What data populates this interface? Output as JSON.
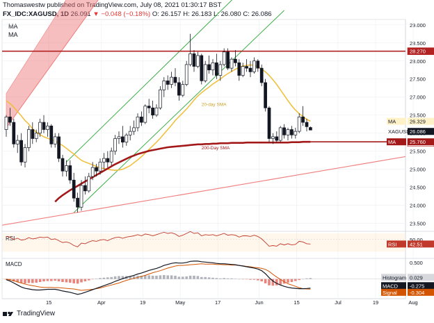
{
  "header": {
    "line1": "Thomaswestw published on TradingView.com, July 08, 2021 01:30:17 BST",
    "symbol": "FX_IDC:XAGUSD, 1D",
    "last": "26.091",
    "change": "▼ −0.048 (−0.18%)",
    "open": "O: 26.157",
    "high": "H: 26.183",
    "low": "L: 26.080",
    "close": "C: 26.086"
  },
  "indicators": [
    "MA",
    "MA"
  ],
  "footer": {
    "brand": "TradingView"
  },
  "colors": {
    "up": "#ffffff",
    "down": "#131722",
    "ma20": "#f0c040",
    "ma200": "#a31919",
    "channel": "#3fae49",
    "resistance": "#b22222",
    "support": "#f08080",
    "rsi": "#c0392b",
    "macd": "#131722",
    "signal": "#d35400"
  },
  "chart_data": [
    {
      "type": "candlestick",
      "title": "",
      "symbol": "FX_IDC:XAGUSD",
      "timeframe": "1D",
      "ylim": [
        23.3,
        29.15
      ],
      "y_ticks": [
        "29.000",
        "28.500",
        "28.000",
        "27.500",
        "27.000",
        "26.500",
        "26.000",
        "25.500",
        "25.000",
        "24.500",
        "24.000",
        "23.500"
      ],
      "x_ticks": [
        "15",
        "Apr",
        "19",
        "May",
        "17",
        "Jun",
        "15",
        "Jul",
        "19",
        "Aug"
      ],
      "candles": [
        {
          "o": 26.1,
          "h": 26.5,
          "l": 25.9,
          "c": 26.45
        },
        {
          "o": 26.45,
          "h": 26.7,
          "l": 26.2,
          "c": 26.3
        },
        {
          "o": 26.3,
          "h": 26.4,
          "l": 25.6,
          "c": 25.7
        },
        {
          "o": 25.7,
          "h": 25.95,
          "l": 25.45,
          "c": 25.8
        },
        {
          "o": 25.8,
          "h": 26.0,
          "l": 25.1,
          "c": 25.2
        },
        {
          "o": 25.2,
          "h": 25.7,
          "l": 25.05,
          "c": 25.6
        },
        {
          "o": 25.6,
          "h": 26.2,
          "l": 25.5,
          "c": 26.1
        },
        {
          "o": 26.1,
          "h": 26.3,
          "l": 25.7,
          "c": 25.85
        },
        {
          "o": 25.85,
          "h": 26.1,
          "l": 25.75,
          "c": 26.0
        },
        {
          "o": 26.0,
          "h": 26.4,
          "l": 25.9,
          "c": 26.3
        },
        {
          "o": 26.3,
          "h": 26.5,
          "l": 26.0,
          "c": 26.1
        },
        {
          "o": 26.1,
          "h": 26.3,
          "l": 25.9,
          "c": 26.2
        },
        {
          "o": 26.2,
          "h": 26.25,
          "l": 25.6,
          "c": 25.7
        },
        {
          "o": 25.7,
          "h": 26.0,
          "l": 25.6,
          "c": 25.9
        },
        {
          "o": 25.9,
          "h": 26.0,
          "l": 25.2,
          "c": 25.3
        },
        {
          "o": 25.3,
          "h": 25.4,
          "l": 24.8,
          "c": 24.95
        },
        {
          "o": 24.95,
          "h": 25.25,
          "l": 24.8,
          "c": 25.1
        },
        {
          "o": 25.1,
          "h": 25.25,
          "l": 24.6,
          "c": 24.7
        },
        {
          "o": 24.7,
          "h": 24.9,
          "l": 24.1,
          "c": 24.2
        },
        {
          "o": 24.2,
          "h": 24.35,
          "l": 23.8,
          "c": 23.95
        },
        {
          "o": 23.95,
          "h": 24.7,
          "l": 23.85,
          "c": 24.55
        },
        {
          "o": 24.55,
          "h": 24.8,
          "l": 24.3,
          "c": 24.4
        },
        {
          "o": 24.4,
          "h": 24.9,
          "l": 24.35,
          "c": 24.8
        },
        {
          "o": 24.8,
          "h": 25.2,
          "l": 24.7,
          "c": 25.05
        },
        {
          "o": 25.05,
          "h": 25.15,
          "l": 24.8,
          "c": 24.95
        },
        {
          "o": 24.95,
          "h": 25.3,
          "l": 24.85,
          "c": 25.2
        },
        {
          "o": 25.2,
          "h": 25.45,
          "l": 25.0,
          "c": 25.3
        },
        {
          "o": 25.3,
          "h": 25.5,
          "l": 25.05,
          "c": 25.2
        },
        {
          "o": 25.2,
          "h": 25.6,
          "l": 25.1,
          "c": 25.5
        },
        {
          "o": 25.5,
          "h": 25.95,
          "l": 25.4,
          "c": 25.85
        },
        {
          "o": 25.85,
          "h": 26.05,
          "l": 25.7,
          "c": 25.9
        },
        {
          "o": 25.9,
          "h": 26.2,
          "l": 25.6,
          "c": 25.75
        },
        {
          "o": 25.75,
          "h": 26.0,
          "l": 25.65,
          "c": 25.95
        },
        {
          "o": 25.95,
          "h": 26.2,
          "l": 25.8,
          "c": 26.05
        },
        {
          "o": 26.05,
          "h": 26.35,
          "l": 25.95,
          "c": 26.15
        },
        {
          "o": 26.15,
          "h": 26.55,
          "l": 26.05,
          "c": 26.45
        },
        {
          "o": 26.45,
          "h": 26.6,
          "l": 26.2,
          "c": 26.3
        },
        {
          "o": 26.3,
          "h": 26.8,
          "l": 26.25,
          "c": 26.75
        },
        {
          "o": 26.75,
          "h": 26.95,
          "l": 26.55,
          "c": 26.7
        },
        {
          "o": 26.7,
          "h": 26.9,
          "l": 26.4,
          "c": 26.5
        },
        {
          "o": 26.5,
          "h": 26.8,
          "l": 26.45,
          "c": 26.7
        },
        {
          "o": 26.7,
          "h": 27.3,
          "l": 26.65,
          "c": 27.2
        },
        {
          "o": 27.2,
          "h": 27.55,
          "l": 27.0,
          "c": 27.45
        },
        {
          "o": 27.45,
          "h": 27.6,
          "l": 27.2,
          "c": 27.35
        },
        {
          "o": 27.35,
          "h": 27.7,
          "l": 27.25,
          "c": 27.55
        },
        {
          "o": 27.55,
          "h": 27.8,
          "l": 27.3,
          "c": 27.4
        },
        {
          "o": 27.4,
          "h": 27.55,
          "l": 26.9,
          "c": 27.05
        },
        {
          "o": 27.05,
          "h": 27.45,
          "l": 27.0,
          "c": 27.35
        },
        {
          "o": 27.35,
          "h": 28.0,
          "l": 27.3,
          "c": 27.9
        },
        {
          "o": 27.9,
          "h": 28.75,
          "l": 27.85,
          "c": 28.2
        },
        {
          "o": 28.2,
          "h": 28.3,
          "l": 27.7,
          "c": 27.85
        },
        {
          "o": 27.85,
          "h": 28.25,
          "l": 27.8,
          "c": 28.15
        },
        {
          "o": 28.15,
          "h": 28.2,
          "l": 27.35,
          "c": 27.45
        },
        {
          "o": 27.45,
          "h": 28.0,
          "l": 27.4,
          "c": 27.9
        },
        {
          "o": 27.9,
          "h": 28.15,
          "l": 27.65,
          "c": 27.75
        },
        {
          "o": 27.75,
          "h": 28.05,
          "l": 27.6,
          "c": 27.95
        },
        {
          "o": 27.95,
          "h": 28.2,
          "l": 27.5,
          "c": 27.6
        },
        {
          "o": 27.6,
          "h": 28.0,
          "l": 27.45,
          "c": 27.9
        },
        {
          "o": 27.9,
          "h": 28.35,
          "l": 27.85,
          "c": 28.25
        },
        {
          "o": 28.25,
          "h": 28.35,
          "l": 27.75,
          "c": 27.8
        },
        {
          "o": 27.8,
          "h": 28.1,
          "l": 27.7,
          "c": 28.05
        },
        {
          "o": 28.05,
          "h": 28.3,
          "l": 27.85,
          "c": 27.95
        },
        {
          "o": 27.95,
          "h": 28.05,
          "l": 27.45,
          "c": 27.6
        },
        {
          "o": 27.6,
          "h": 27.95,
          "l": 27.55,
          "c": 27.85
        },
        {
          "o": 27.85,
          "h": 28.05,
          "l": 27.7,
          "c": 27.8
        },
        {
          "o": 27.8,
          "h": 28.0,
          "l": 27.55,
          "c": 27.7
        },
        {
          "o": 27.7,
          "h": 28.1,
          "l": 27.65,
          "c": 28.0
        },
        {
          "o": 28.0,
          "h": 28.05,
          "l": 27.7,
          "c": 27.8
        },
        {
          "o": 27.8,
          "h": 27.9,
          "l": 27.3,
          "c": 27.4
        },
        {
          "o": 27.4,
          "h": 27.5,
          "l": 26.6,
          "c": 26.7
        },
        {
          "o": 26.7,
          "h": 26.75,
          "l": 25.75,
          "c": 25.85
        },
        {
          "o": 25.85,
          "h": 26.0,
          "l": 25.7,
          "c": 25.9
        },
        {
          "o": 25.9,
          "h": 26.05,
          "l": 25.75,
          "c": 25.8
        },
        {
          "o": 25.8,
          "h": 26.2,
          "l": 25.75,
          "c": 26.15
        },
        {
          "o": 26.15,
          "h": 26.25,
          "l": 25.85,
          "c": 25.95
        },
        {
          "o": 25.95,
          "h": 26.15,
          "l": 25.8,
          "c": 26.1
        },
        {
          "o": 26.1,
          "h": 26.2,
          "l": 25.85,
          "c": 25.95
        },
        {
          "o": 25.95,
          "h": 26.15,
          "l": 25.85,
          "c": 26.05
        },
        {
          "o": 26.05,
          "h": 26.55,
          "l": 26.0,
          "c": 26.45
        },
        {
          "o": 26.45,
          "h": 26.75,
          "l": 26.2,
          "c": 26.3
        },
        {
          "o": 26.3,
          "h": 26.4,
          "l": 26.05,
          "c": 26.18
        },
        {
          "o": 26.157,
          "h": 26.183,
          "l": 26.08,
          "c": 26.086
        }
      ],
      "ma20": {
        "name": "20-day SMA",
        "values": [
          26.9,
          26.82,
          26.72,
          26.6,
          26.48,
          26.35,
          26.25,
          26.12,
          26.03,
          25.96,
          25.9,
          25.86,
          25.82,
          25.78,
          25.72,
          25.66,
          25.58,
          25.5,
          25.42,
          25.33,
          25.25,
          25.2,
          25.16,
          25.12,
          25.08,
          25.04,
          25.02,
          25.0,
          24.98,
          24.97,
          24.98,
          25.0,
          25.05,
          25.1,
          25.18,
          25.26,
          25.35,
          25.45,
          25.55,
          25.65,
          25.75,
          25.86,
          25.98,
          26.1,
          26.22,
          26.35,
          26.46,
          26.56,
          26.67,
          26.79,
          26.92,
          27.03,
          27.12,
          27.2,
          27.28,
          27.36,
          27.43,
          27.5,
          27.58,
          27.65,
          27.71,
          27.77,
          27.82,
          27.86,
          27.88,
          27.89,
          27.88,
          27.84,
          27.78,
          27.7,
          27.6,
          27.48,
          27.35,
          27.2,
          27.05,
          26.9,
          26.76,
          26.64,
          26.54,
          26.46,
          26.38,
          26.33
        ]
      },
      "ma200": {
        "name": "200-Day SMA",
        "values": [
          null,
          null,
          null,
          null,
          null,
          null,
          null,
          null,
          null,
          null,
          null,
          null,
          null,
          24.1,
          24.2,
          24.28,
          24.35,
          24.42,
          24.48,
          24.54,
          24.6,
          24.66,
          24.72,
          24.78,
          24.84,
          24.9,
          24.96,
          25.02,
          25.08,
          25.14,
          25.19,
          25.24,
          25.29,
          25.34,
          25.38,
          25.42,
          25.45,
          25.48,
          25.51,
          25.53,
          25.55,
          25.57,
          25.59,
          25.61,
          25.62,
          25.63,
          25.64,
          25.65,
          25.66,
          25.67,
          25.68,
          25.69,
          25.69,
          25.7,
          25.7,
          25.71,
          25.71,
          25.72,
          25.72,
          25.72,
          25.73,
          25.73,
          25.73,
          25.73,
          25.74,
          25.74,
          25.74,
          25.74,
          25.74,
          25.74,
          25.74,
          25.74,
          25.74,
          25.74,
          25.74,
          25.74,
          25.75,
          25.75,
          25.75,
          25.76,
          25.76,
          25.76
        ]
      },
      "horizontal_levels": [
        {
          "value": 28.27,
          "label": "28.270"
        },
        {
          "value": 25.73,
          "label": "25.730"
        }
      ],
      "price_labels": [
        {
          "name": "MA",
          "value": "26.329"
        },
        {
          "name": "XAGUSD",
          "value": "26.086"
        },
        {
          "name": "MA",
          "value": "25.760"
        }
      ]
    },
    {
      "type": "line",
      "name": "RSI",
      "ylim": [
        20,
        60
      ],
      "y_ticks": [
        "50.00"
      ],
      "last": "42.51",
      "values": [
        55,
        54,
        50,
        52,
        49,
        50,
        53,
        51,
        52,
        54,
        53,
        54,
        50,
        51,
        48,
        45,
        46,
        44,
        40,
        38,
        44,
        43,
        46,
        48,
        47,
        49,
        50,
        48,
        51,
        53,
        54,
        52,
        54,
        55,
        56,
        58,
        56,
        59,
        58,
        56,
        58,
        60,
        62,
        60,
        61,
        59,
        55,
        57,
        60,
        63,
        60,
        61,
        56,
        58,
        57,
        58,
        56,
        58,
        60,
        57,
        58,
        57,
        54,
        56,
        56,
        55,
        57,
        55,
        51,
        45,
        39,
        40,
        39,
        43,
        41,
        43,
        41,
        42,
        47,
        46,
        43,
        42.51
      ]
    },
    {
      "type": "bar+line",
      "name": "MACD",
      "ylim": [
        -0.55,
        0.6
      ],
      "y_ticks": [
        "0.500"
      ],
      "histogram_last": "0.029",
      "macd_last": "-0.275",
      "signal_last": "-0.304",
      "histogram": [
        -0.02,
        -0.04,
        -0.07,
        -0.09,
        -0.12,
        -0.13,
        -0.12,
        -0.12,
        -0.11,
        -0.09,
        -0.07,
        -0.06,
        -0.06,
        -0.05,
        -0.07,
        -0.09,
        -0.1,
        -0.11,
        -0.13,
        -0.14,
        -0.1,
        -0.07,
        -0.04,
        -0.01,
        0.01,
        0.03,
        0.04,
        0.05,
        0.06,
        0.08,
        0.09,
        0.09,
        0.09,
        0.09,
        0.09,
        0.1,
        0.1,
        0.11,
        0.11,
        0.1,
        0.1,
        0.11,
        0.12,
        0.11,
        0.11,
        0.1,
        0.07,
        0.07,
        0.08,
        0.1,
        0.1,
        0.09,
        0.06,
        0.06,
        0.05,
        0.04,
        0.03,
        0.02,
        0.03,
        0.02,
        0.02,
        0.01,
        0.0,
        -0.01,
        -0.01,
        -0.02,
        -0.02,
        -0.04,
        -0.07,
        -0.13,
        -0.19,
        -0.2,
        -0.19,
        -0.17,
        -0.14,
        -0.11,
        -0.09,
        -0.06,
        -0.03,
        0.0,
        0.02,
        0.029
      ],
      "macd": [
        -0.02,
        -0.06,
        -0.12,
        -0.18,
        -0.24,
        -0.28,
        -0.3,
        -0.32,
        -0.33,
        -0.33,
        -0.32,
        -0.31,
        -0.31,
        -0.31,
        -0.33,
        -0.36,
        -0.38,
        -0.4,
        -0.43,
        -0.46,
        -0.44,
        -0.4,
        -0.36,
        -0.32,
        -0.28,
        -0.24,
        -0.2,
        -0.16,
        -0.12,
        -0.07,
        -0.03,
        0.01,
        0.05,
        0.08,
        0.11,
        0.15,
        0.18,
        0.22,
        0.26,
        0.29,
        0.32,
        0.36,
        0.41,
        0.44,
        0.47,
        0.49,
        0.48,
        0.48,
        0.5,
        0.53,
        0.54,
        0.54,
        0.52,
        0.51,
        0.5,
        0.49,
        0.47,
        0.46,
        0.46,
        0.45,
        0.44,
        0.43,
        0.41,
        0.39,
        0.37,
        0.35,
        0.33,
        0.3,
        0.25,
        0.16,
        0.04,
        -0.06,
        -0.13,
        -0.18,
        -0.22,
        -0.25,
        -0.27,
        -0.28,
        -0.29,
        -0.29,
        -0.285,
        -0.275
      ],
      "signal": [
        0.0,
        -0.02,
        -0.05,
        -0.09,
        -0.12,
        -0.15,
        -0.18,
        -0.2,
        -0.22,
        -0.24,
        -0.25,
        -0.25,
        -0.25,
        -0.26,
        -0.26,
        -0.27,
        -0.28,
        -0.29,
        -0.3,
        -0.32,
        -0.34,
        -0.33,
        -0.32,
        -0.31,
        -0.29,
        -0.27,
        -0.24,
        -0.21,
        -0.18,
        -0.15,
        -0.12,
        -0.08,
        -0.04,
        -0.01,
        0.02,
        0.05,
        0.08,
        0.11,
        0.15,
        0.19,
        0.22,
        0.25,
        0.29,
        0.33,
        0.36,
        0.39,
        0.41,
        0.41,
        0.42,
        0.43,
        0.44,
        0.45,
        0.46,
        0.45,
        0.45,
        0.45,
        0.44,
        0.44,
        0.43,
        0.43,
        0.42,
        0.42,
        0.41,
        0.4,
        0.38,
        0.37,
        0.35,
        0.34,
        0.32,
        0.29,
        0.23,
        0.14,
        0.06,
        -0.01,
        -0.08,
        -0.14,
        -0.18,
        -0.22,
        -0.26,
        -0.29,
        -0.3,
        -0.304
      ]
    }
  ]
}
